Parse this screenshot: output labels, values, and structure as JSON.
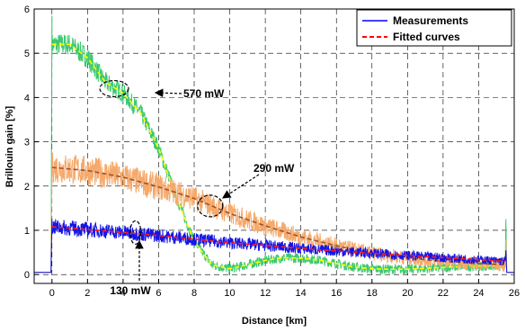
{
  "chart_data": {
    "type": "line",
    "title": "",
    "xlabel": "Distance  [km]",
    "ylabel": "Brillouin gain  [%]",
    "xlim": [
      -1,
      26
    ],
    "ylim": [
      -0.2,
      6
    ],
    "xticks": [
      0,
      2,
      4,
      6,
      8,
      10,
      12,
      14,
      16,
      18,
      20,
      22,
      24,
      26
    ],
    "yticks": [
      0,
      1,
      2,
      3,
      4,
      5,
      6
    ],
    "grid": true,
    "legend_position": "top-right",
    "legend": [
      {
        "label": "Measurements",
        "color": "#0000ff",
        "style": "solid"
      },
      {
        "label": "Fitted curves",
        "color": "#ff0000",
        "style": "dashed"
      }
    ],
    "series": [
      {
        "name": "570 mW",
        "kind": "measurement",
        "color": "#3cc870",
        "x": [
          0,
          1,
          2,
          3,
          4,
          5,
          6,
          7,
          8,
          9,
          10,
          11,
          12,
          13,
          14,
          15,
          16,
          17,
          18,
          19,
          20,
          21,
          22,
          23,
          24,
          25.5
        ],
        "y": [
          5.2,
          5.2,
          4.9,
          4.35,
          4.1,
          3.65,
          2.85,
          1.75,
          0.75,
          0.22,
          0.13,
          0.22,
          0.32,
          0.38,
          0.37,
          0.33,
          0.25,
          0.17,
          0.13,
          0.12,
          0.12,
          0.14,
          0.16,
          0.18,
          0.19,
          0.19
        ],
        "noise": 0.25
      },
      {
        "name": "570 mW fit",
        "kind": "fit",
        "color": "#ffff00",
        "x": [
          0,
          1,
          2,
          3,
          4,
          5,
          6,
          7,
          8,
          9,
          10,
          11,
          12,
          13,
          14,
          15,
          16,
          17,
          18,
          19,
          20,
          21,
          22,
          23,
          24,
          25.5
        ],
        "y": [
          5.2,
          5.2,
          4.9,
          4.35,
          4.1,
          3.65,
          2.85,
          1.75,
          0.75,
          0.22,
          0.13,
          0.22,
          0.32,
          0.38,
          0.37,
          0.33,
          0.25,
          0.17,
          0.13,
          0.12,
          0.12,
          0.14,
          0.16,
          0.18,
          0.19,
          0.19
        ]
      },
      {
        "name": "290 mW",
        "kind": "measurement",
        "color": "#f5a96b",
        "x": [
          0,
          2,
          4,
          6,
          8,
          9,
          10,
          12,
          14,
          16,
          18,
          20,
          22,
          24,
          25.5
        ],
        "y": [
          2.42,
          2.35,
          2.2,
          1.98,
          1.72,
          1.55,
          1.38,
          1.1,
          0.85,
          0.65,
          0.48,
          0.37,
          0.3,
          0.25,
          0.22
        ],
        "noise": 0.35
      },
      {
        "name": "290 mW fit",
        "kind": "fit",
        "color": "#a0522d",
        "x": [
          0,
          2,
          4,
          6,
          8,
          9,
          10,
          12,
          14,
          16,
          18,
          20,
          22,
          24,
          25.5
        ],
        "y": [
          2.42,
          2.35,
          2.2,
          1.98,
          1.72,
          1.55,
          1.38,
          1.1,
          0.85,
          0.65,
          0.48,
          0.37,
          0.3,
          0.25,
          0.22
        ]
      },
      {
        "name": "130 mW",
        "kind": "measurement",
        "color": "#1414e6",
        "x": [
          0,
          5,
          10,
          15,
          20,
          25.5
        ],
        "y": [
          1.08,
          0.92,
          0.72,
          0.56,
          0.43,
          0.3
        ],
        "noise": 0.18
      },
      {
        "name": "130 mW fit",
        "kind": "fit",
        "color": "#ff1a1a",
        "x": [
          0,
          5,
          10,
          15,
          20,
          25.5
        ],
        "y": [
          1.08,
          0.92,
          0.72,
          0.56,
          0.43,
          0.3
        ]
      }
    ],
    "annotations": [
      {
        "label": "570 mW",
        "at": [
          3.5,
          4.2
        ]
      },
      {
        "label": "290 mW",
        "at": [
          8.9,
          1.55
        ]
      },
      {
        "label": "130 mW",
        "at": [
          4.7,
          0.95
        ]
      }
    ]
  }
}
